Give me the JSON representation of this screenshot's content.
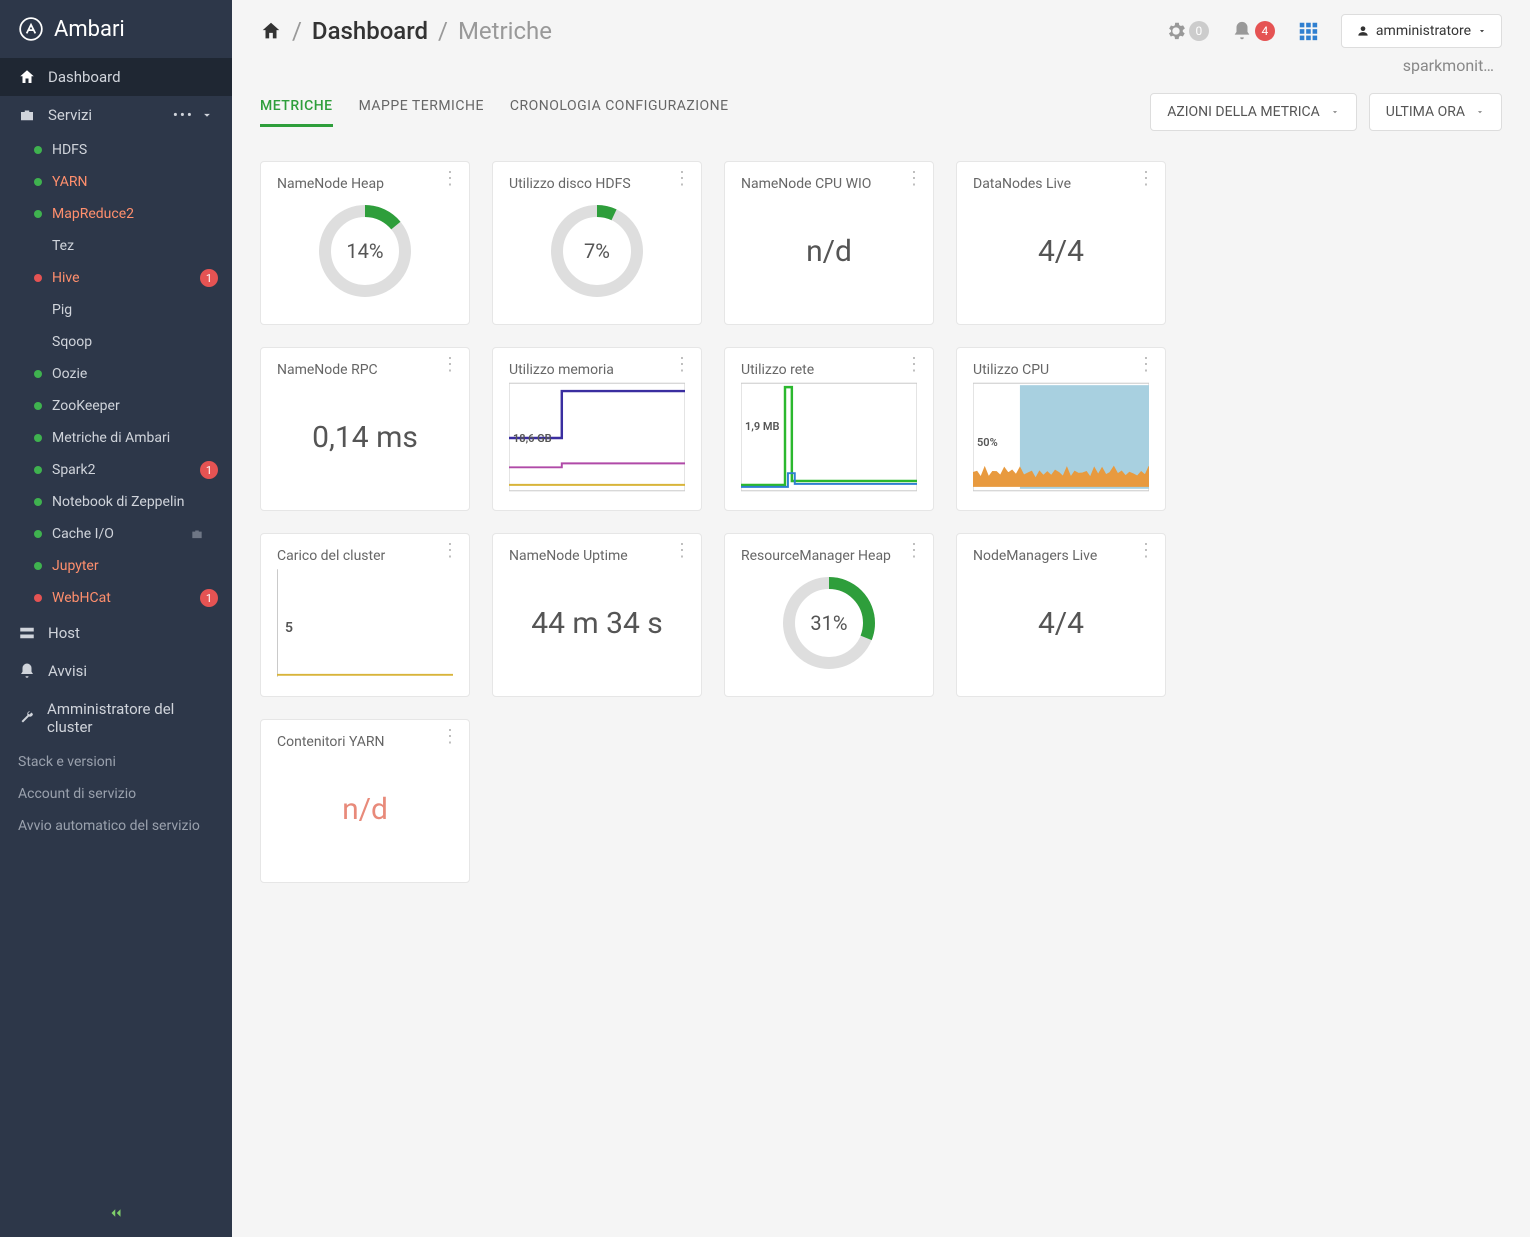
{
  "brand": "Ambari",
  "sidebar": {
    "dashboard": "Dashboard",
    "services": "Servizi",
    "items": [
      {
        "label": "HDFS",
        "dot": "green",
        "alert": false,
        "badge": null
      },
      {
        "label": "YARN",
        "dot": "green",
        "alert": true,
        "badge": null
      },
      {
        "label": "MapReduce2",
        "dot": "green",
        "alert": true,
        "badge": null
      },
      {
        "label": "Tez",
        "dot": "none",
        "alert": false,
        "badge": null
      },
      {
        "label": "Hive",
        "dot": "red",
        "alert": true,
        "badge": "1"
      },
      {
        "label": "Pig",
        "dot": "none",
        "alert": false,
        "badge": null
      },
      {
        "label": "Sqoop",
        "dot": "none",
        "alert": false,
        "badge": null
      },
      {
        "label": "Oozie",
        "dot": "green",
        "alert": false,
        "badge": null
      },
      {
        "label": "ZooKeeper",
        "dot": "green",
        "alert": false,
        "badge": null
      },
      {
        "label": "Metriche di Ambari",
        "dot": "green",
        "alert": false,
        "badge": null
      },
      {
        "label": "Spark2",
        "dot": "green",
        "alert": false,
        "badge": "1"
      },
      {
        "label": "Notebook di Zeppelin",
        "dot": "green",
        "alert": false,
        "badge": null
      },
      {
        "label": "Cache I/O",
        "dot": "green",
        "alert": false,
        "badge": null,
        "box": true
      },
      {
        "label": "Jupyter",
        "dot": "green",
        "alert": true,
        "badge": null
      },
      {
        "label": "WebHCat",
        "dot": "red",
        "alert": true,
        "badge": "1"
      }
    ],
    "host": "Host",
    "alerts": "Avvisi",
    "admin": "Amministratore del cluster",
    "admin_items": [
      "Stack e versioni",
      "Account di servizio",
      "Avvio automatico del servizio"
    ]
  },
  "breadcrumb": {
    "dashboard": "Dashboard",
    "trail": "Metriche"
  },
  "top": {
    "gear_count": "0",
    "bell_count": "4",
    "user": "amministratore",
    "helper": "sparkmonit…"
  },
  "tabs": [
    "METRICHE",
    "MAPPE TERMICHE",
    "CRONOLOGIA CONFIGURAZIONE"
  ],
  "actions": {
    "metrics": "AZIONI DELLA METRICA",
    "time": "ULTIMA ORA"
  },
  "cards": [
    {
      "title": "NameNode Heap",
      "type": "donut",
      "pct": 14,
      "label": "14%",
      "color": "#2e9e3b",
      "track": "#dedede"
    },
    {
      "title": "Utilizzo disco HDFS",
      "type": "donut",
      "pct": 7,
      "label": "7%",
      "color": "#2e9e3b",
      "track": "#dedede"
    },
    {
      "title": "NameNode CPU WIO",
      "type": "value",
      "value": "n/d"
    },
    {
      "title": "DataNodes Live",
      "type": "value",
      "value": "4/4"
    },
    {
      "title": "NameNode RPC",
      "type": "value",
      "value": "0,14 ms"
    },
    {
      "title": "Utilizzo memoria",
      "type": "mem-chart",
      "label": "18,6 GB",
      "colors": {
        "border": "#c9c9c9",
        "line1": "#3a2ea0",
        "line2": "#d8b43a",
        "line3": "#b04aa8",
        "bg": "#fff"
      },
      "ylim": [
        0,
        40
      ],
      "series_step": [
        [
          0,
          18
        ],
        [
          30,
          18
        ],
        [
          30,
          36
        ],
        [
          100,
          36
        ]
      ]
    },
    {
      "title": "Utilizzo rete",
      "type": "net-chart",
      "label": "1,9 MB",
      "colors": {
        "green": "#2bb82e",
        "blue": "#2f7fd0",
        "border": "#c9c9c9"
      },
      "ylim": [
        0,
        4
      ],
      "spike_x": 26
    },
    {
      "title": "Utilizzo CPU",
      "type": "cpu-chart",
      "label": "50%",
      "colors": {
        "area": "#a8d0e0",
        "fg": "#e89a3f",
        "border": "#c9c9c9"
      },
      "ylim": [
        0,
        100
      ]
    },
    {
      "title": "Carico del cluster",
      "type": "load-chart",
      "label": "5",
      "colors": {
        "line": "#d8b43a",
        "border": "#c9c9c9"
      }
    },
    {
      "title": "NameNode Uptime",
      "type": "value",
      "value": "44 m 34 s"
    },
    {
      "title": "ResourceManager Heap",
      "type": "donut",
      "pct": 31,
      "label": "31%",
      "color": "#2e9e3b",
      "track": "#dedede"
    },
    {
      "title": "NodeManagers Live",
      "type": "value",
      "value": "4/4"
    },
    {
      "title": "Contenitori YARN",
      "type": "value",
      "value": "n/d",
      "red": true
    }
  ]
}
